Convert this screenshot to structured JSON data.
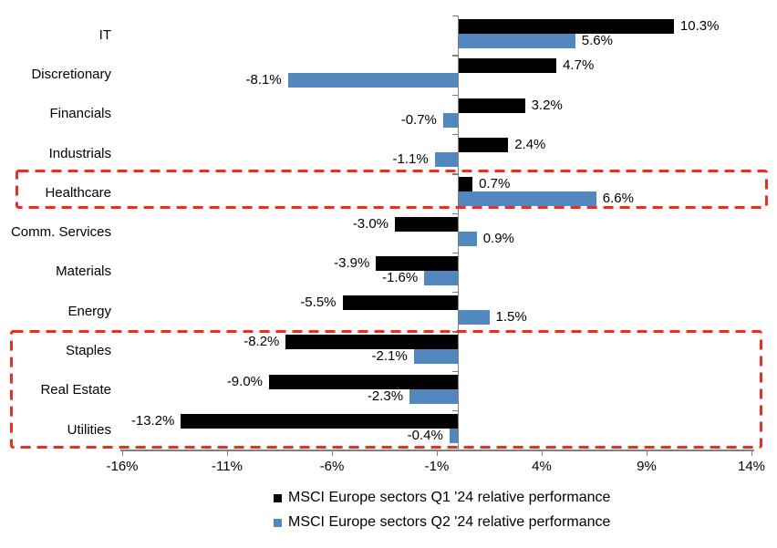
{
  "chart_data": {
    "type": "bar",
    "orientation": "horizontal",
    "title": "",
    "categories": [
      "IT",
      "Discretionary",
      "Financials",
      "Industrials",
      "Healthcare",
      "Comm. Services",
      "Materials",
      "Energy",
      "Staples",
      "Real Estate",
      "Utilities"
    ],
    "series": [
      {
        "name": "MSCI Europe sectors Q1 '24 relative performance",
        "color": "#000000",
        "values": [
          10.3,
          4.7,
          3.2,
          2.4,
          0.7,
          -3.0,
          -3.9,
          -5.5,
          -8.2,
          -9.0,
          -13.2
        ],
        "labels": [
          "10.3%",
          "4.7%",
          "3.2%",
          "2.4%",
          "0.7%",
          "-3.0%",
          "-3.9%",
          "-5.5%",
          "-8.2%",
          "-9.0%",
          "-13.2%"
        ]
      },
      {
        "name": "MSCI Europe sectors Q2 '24 relative performance",
        "color": "#5288BE",
        "values": [
          5.6,
          -8.1,
          -0.7,
          -1.1,
          6.6,
          0.9,
          -1.6,
          1.5,
          -2.1,
          -2.3,
          -0.4
        ],
        "labels": [
          "5.6%",
          "-8.1%",
          "-0.7%",
          "-1.1%",
          "6.6%",
          "0.9%",
          "-1.6%",
          "1.5%",
          "-2.1%",
          "-2.3%",
          "-0.4%"
        ]
      }
    ],
    "xlim": [
      -16,
      14
    ],
    "x_ticks": [
      -16,
      -11,
      -6,
      -1,
      4,
      9,
      14
    ],
    "x_tick_labels": [
      "-16%",
      "-11%",
      "-6%",
      "-1%",
      "4%",
      "9%",
      "14%"
    ],
    "grid": false,
    "legend_position": "bottom-center",
    "highlight_boxes": [
      {
        "name": "healthcare-highlight",
        "rows": [
          "Healthcare"
        ],
        "color": "#F42A1D",
        "style": "dashed"
      },
      {
        "name": "staples-real-estate-utilities-highlight",
        "rows": [
          "Staples",
          "Real Estate",
          "Utilities"
        ],
        "color": "#F42A1D",
        "style": "dashed"
      }
    ],
    "colors": {
      "q1_bar": "#000000",
      "q2_bar": "#5288BE",
      "axis": "#808080",
      "highlight": "#F42A1D",
      "background": "#FFFFFF"
    }
  }
}
